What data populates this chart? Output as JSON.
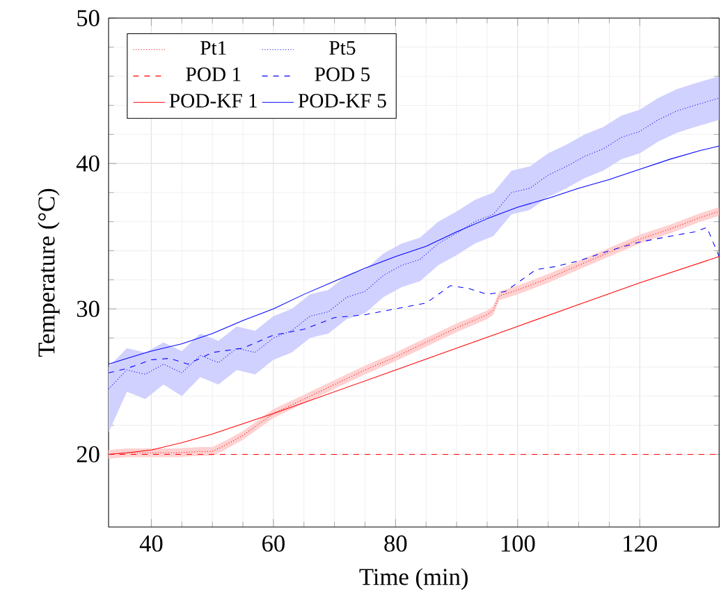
{
  "chart_data": {
    "type": "line",
    "xlabel": "Time (min)",
    "ylabel": "Temperature (°C)",
    "xlim": [
      33,
      133
    ],
    "ylim": [
      15,
      50
    ],
    "xticks": [
      40,
      60,
      80,
      100,
      120
    ],
    "yticks": [
      20,
      30,
      40,
      50
    ],
    "grid": true,
    "legend": "top left",
    "marker": "none",
    "series": [
      {
        "name": "Pt1",
        "color": "#ff0000",
        "line_style": "dotted",
        "x": [
          33,
          36,
          40,
          44,
          48,
          50,
          52,
          55,
          60,
          65,
          70,
          75,
          80,
          85,
          90,
          95,
          96,
          97,
          100,
          105,
          110,
          115,
          120,
          125,
          130,
          133
        ],
        "values": [
          20,
          20.1,
          20.1,
          20.1,
          20.2,
          20.2,
          20.6,
          21.3,
          22.8,
          23.8,
          24.8,
          25.8,
          26.7,
          27.7,
          28.7,
          29.6,
          29.9,
          30.9,
          31.3,
          32.1,
          33.0,
          33.9,
          34.8,
          35.5,
          36.3,
          36.7
        ],
        "lower": [
          19.7,
          19.8,
          19.8,
          19.8,
          19.9,
          19.9,
          20.3,
          21.0,
          22.5,
          23.5,
          24.5,
          25.5,
          26.4,
          27.4,
          28.4,
          29.3,
          29.6,
          30.6,
          31.0,
          31.8,
          32.7,
          33.6,
          34.5,
          35.2,
          36.0,
          36.4
        ],
        "upper": [
          20.3,
          20.4,
          20.4,
          20.4,
          20.5,
          20.5,
          20.9,
          21.6,
          23.1,
          24.1,
          25.1,
          26.1,
          27.0,
          28.0,
          29.0,
          29.9,
          30.2,
          31.2,
          31.6,
          32.4,
          33.3,
          34.2,
          35.1,
          35.8,
          36.6,
          37.0
        ]
      },
      {
        "name": "Pt5",
        "color": "#0000ff",
        "line_style": "dotted",
        "x": [
          33,
          36,
          39,
          42,
          45,
          48,
          51,
          54,
          57,
          60,
          63,
          66,
          69,
          72,
          75,
          78,
          81,
          84,
          87,
          90,
          93,
          96,
          99,
          102,
          105,
          108,
          111,
          114,
          117,
          120,
          123,
          126,
          129,
          133
        ],
        "values": [
          24.5,
          25.8,
          25.5,
          26.2,
          25.6,
          26.8,
          26.3,
          27.3,
          27.0,
          28.0,
          28.5,
          29.5,
          29.8,
          30.8,
          31.2,
          32.3,
          33.0,
          33.4,
          34.5,
          35.2,
          36.0,
          36.5,
          38.0,
          38.3,
          39.2,
          39.8,
          40.5,
          41.0,
          41.8,
          42.2,
          43.0,
          43.6,
          44.0,
          44.5
        ],
        "lower": [
          21.5,
          24.3,
          23.8,
          24.8,
          24.0,
          25.3,
          24.8,
          25.8,
          25.5,
          26.5,
          27.0,
          28.0,
          28.3,
          29.3,
          29.7,
          30.8,
          31.5,
          31.9,
          33.0,
          33.7,
          34.5,
          35.0,
          36.5,
          36.8,
          37.7,
          38.3,
          39.0,
          39.5,
          40.3,
          40.7,
          41.5,
          42.1,
          42.5,
          43.0
        ],
        "upper": [
          26.0,
          27.3,
          27.0,
          27.7,
          27.1,
          28.3,
          27.8,
          28.8,
          28.5,
          29.5,
          30.0,
          31.0,
          31.3,
          32.3,
          32.7,
          33.8,
          34.5,
          34.9,
          36.0,
          36.7,
          37.5,
          38.0,
          39.5,
          39.8,
          40.7,
          41.3,
          42.0,
          42.5,
          43.3,
          43.7,
          44.5,
          45.1,
          45.5,
          46.0
        ]
      },
      {
        "name": "POD 1",
        "color": "#ff0000",
        "line_style": "dashed",
        "x": [
          33,
          133
        ],
        "values": [
          20,
          20
        ]
      },
      {
        "name": "POD 5",
        "color": "#0000ff",
        "line_style": "dashed",
        "x": [
          33,
          36,
          40,
          43,
          46,
          50,
          55,
          60,
          65,
          70,
          75,
          80,
          85,
          89,
          92,
          95,
          98,
          100,
          103,
          106,
          110,
          115,
          120,
          125,
          129,
          131,
          133
        ],
        "values": [
          25.6,
          25.9,
          26.5,
          26.6,
          26.2,
          27.0,
          27.3,
          28.2,
          28.6,
          29.4,
          29.6,
          30.0,
          30.4,
          31.6,
          31.4,
          31.0,
          31.2,
          31.8,
          32.7,
          32.9,
          33.3,
          34.0,
          34.6,
          35.0,
          35.3,
          35.6,
          33.6
        ]
      },
      {
        "name": "POD-KF 1",
        "color": "#ff0000",
        "line_style": "solid",
        "x": [
          33,
          36,
          40,
          45,
          50,
          55,
          60,
          70,
          80,
          90,
          100,
          110,
          120,
          133
        ],
        "values": [
          20.0,
          20.1,
          20.3,
          20.8,
          21.4,
          22.1,
          22.8,
          24.3,
          25.8,
          27.3,
          28.8,
          30.3,
          31.8,
          33.6
        ]
      },
      {
        "name": "POD-KF 5",
        "color": "#0000ff",
        "line_style": "solid",
        "x": [
          33,
          36,
          40,
          45,
          50,
          55,
          60,
          65,
          70,
          75,
          80,
          85,
          90,
          95,
          100,
          105,
          110,
          115,
          120,
          125,
          130,
          133
        ],
        "values": [
          26.2,
          26.6,
          27.1,
          27.6,
          28.3,
          29.2,
          30.0,
          31.0,
          31.9,
          32.8,
          33.6,
          34.3,
          35.3,
          36.2,
          37.0,
          37.6,
          38.3,
          38.9,
          39.6,
          40.3,
          40.9,
          41.2
        ]
      }
    ]
  }
}
